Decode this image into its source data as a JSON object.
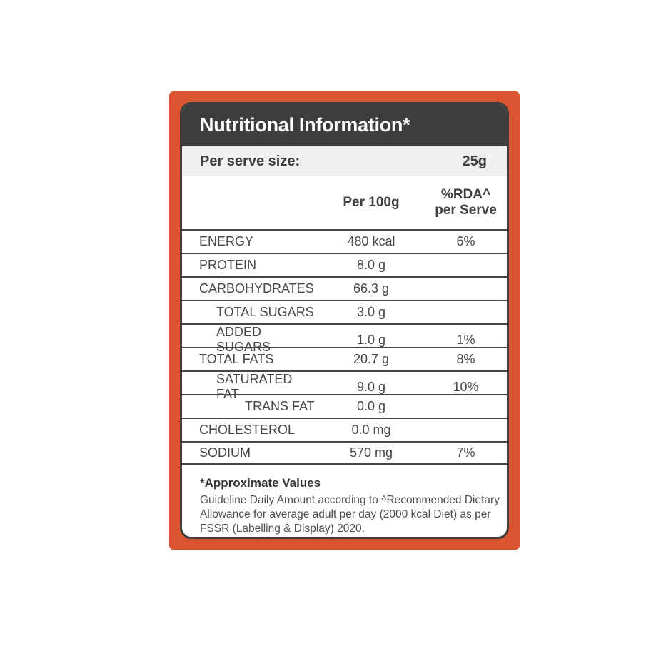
{
  "header": {
    "title": "Nutritional Information*"
  },
  "serve": {
    "label": "Per serve size:",
    "value": "25g"
  },
  "columns": {
    "nutrient": "",
    "per_100g": "Per 100g",
    "rda_line1": "%RDA^",
    "rda_line2": "per Serve"
  },
  "rows": [
    {
      "name": "ENERGY",
      "value": "480 kcal",
      "rda": "6%",
      "indent": 0
    },
    {
      "name": "PROTEIN",
      "value": "8.0 g",
      "rda": "",
      "indent": 0
    },
    {
      "name": "CARBOHYDRATES",
      "value": "66.3 g",
      "rda": "",
      "indent": 0
    },
    {
      "name": "TOTAL SUGARS",
      "value": "3.0 g",
      "rda": "",
      "indent": 1
    },
    {
      "name": "ADDED SUGARS",
      "value": "1.0 g",
      "rda": "1%",
      "indent": 1
    },
    {
      "name": "TOTAL FATS",
      "value": "20.7 g",
      "rda": "8%",
      "indent": 0
    },
    {
      "name": "SATURATED FAT",
      "value": "9.0 g",
      "rda": "10%",
      "indent": 1
    },
    {
      "name": "TRANS FAT",
      "value": "0.0 g",
      "rda": "",
      "indent": 2
    },
    {
      "name": "CHOLESTEROL",
      "value": "0.0 mg",
      "rda": "",
      "indent": 0
    },
    {
      "name": "SODIUM",
      "value": "570 mg",
      "rda": "7%",
      "indent": 0
    }
  ],
  "footer": {
    "title": "*Approximate Values",
    "note": "Guideline Daily Amount according to ^Recommended Dietary Allowance for average adult per day (2000 kcal Diet) as per FSSR (Labelling & Display) 2020."
  },
  "colors": {
    "accent_orange": "#DB5430",
    "header_bg": "#3D3D3D",
    "serve_row_bg": "#EFEFEF",
    "body_text": "#464646"
  }
}
